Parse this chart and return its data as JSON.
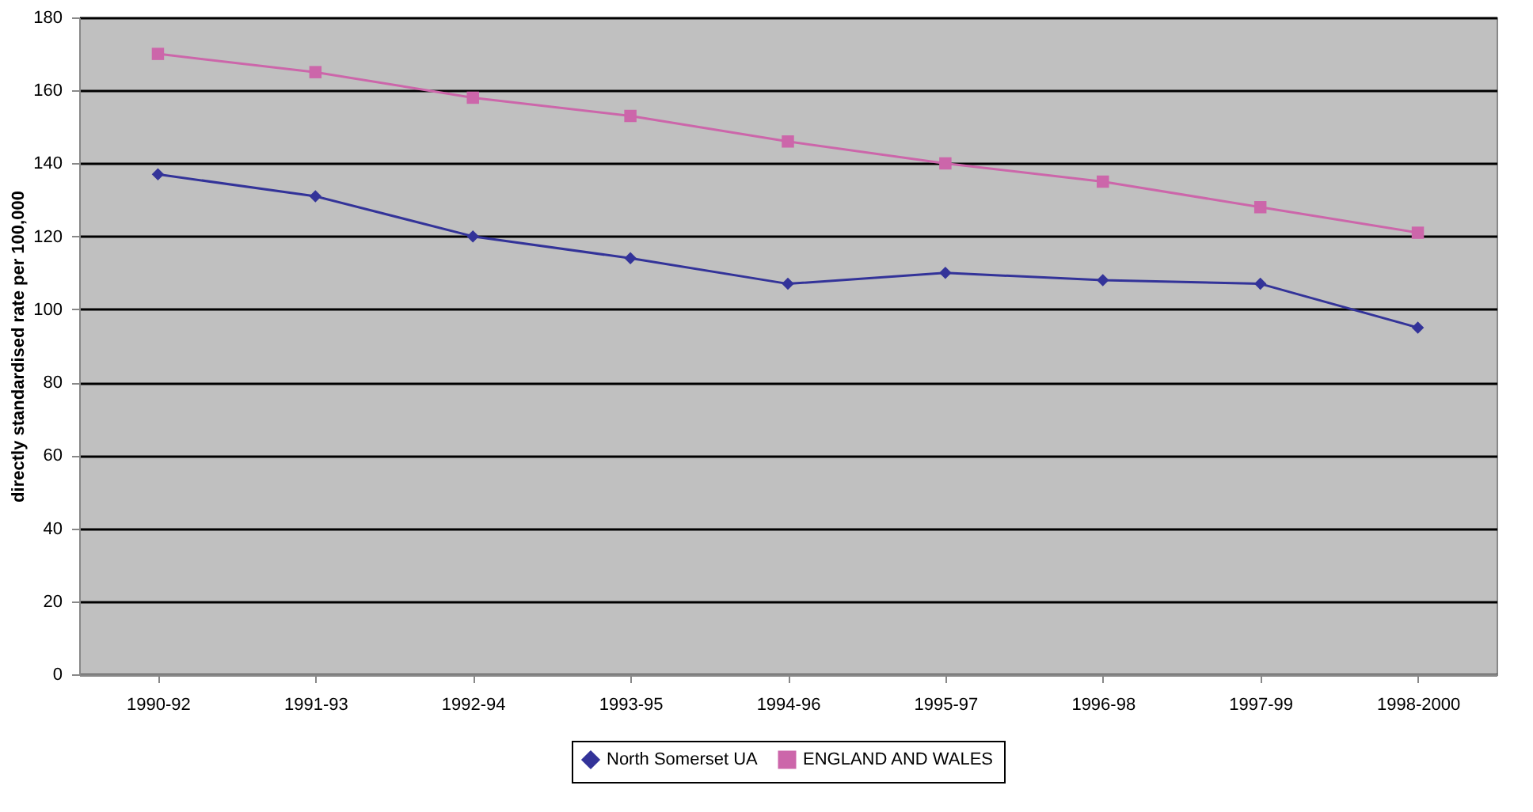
{
  "chart_data": {
    "type": "line",
    "ylabel": "directly standardised rate per 100,000",
    "categories": [
      "1990-92",
      "1991-93",
      "1992-94",
      "1993-95",
      "1994-96",
      "1995-97",
      "1996-98",
      "1997-99",
      "1998-2000"
    ],
    "series": [
      {
        "name": "North Somerset UA",
        "color": "#333399",
        "marker": "diamond",
        "values": [
          137,
          131,
          120,
          114,
          107,
          110,
          108,
          107,
          95
        ]
      },
      {
        "name": "ENGLAND AND WALES",
        "color": "#cc66aa",
        "marker": "square",
        "values": [
          170,
          165,
          158,
          153,
          146,
          140,
          135,
          128,
          121
        ]
      }
    ],
    "ylim": [
      0,
      180
    ],
    "yticks": [
      0,
      20,
      40,
      60,
      80,
      100,
      120,
      140,
      160,
      180
    ],
    "grid": "y",
    "legend": "bottom"
  }
}
